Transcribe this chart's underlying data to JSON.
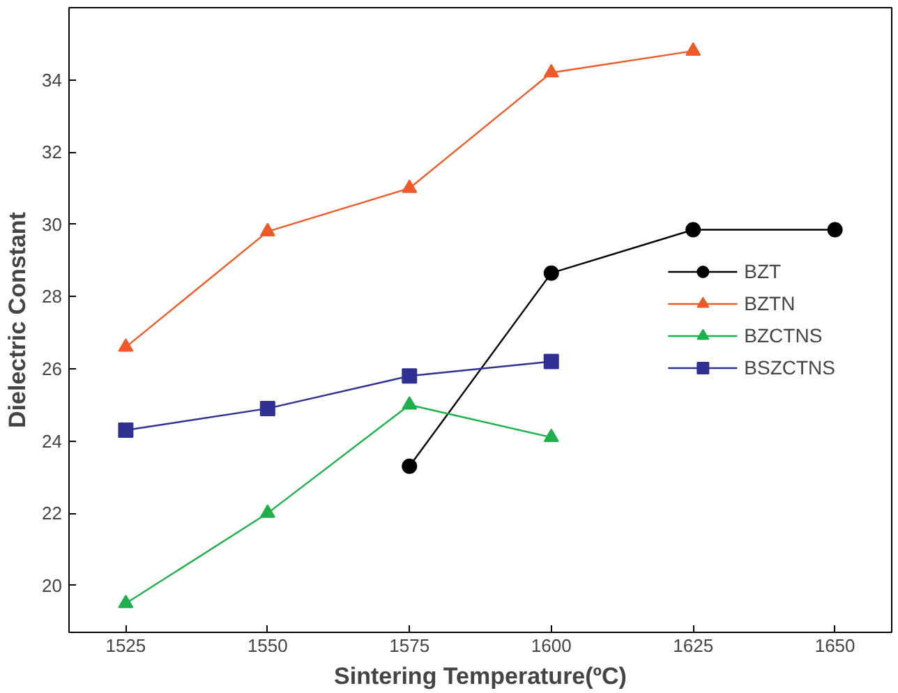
{
  "chart_data": {
    "type": "line",
    "xlabel": "Sintering Temperature(ºC)",
    "ylabel": "Dielectric Constant",
    "xlim": [
      1515,
      1660
    ],
    "ylim": [
      18.7,
      36
    ],
    "xticks": [
      1525,
      1550,
      1575,
      1600,
      1625,
      1650
    ],
    "yticks": [
      20,
      22,
      24,
      26,
      28,
      30,
      32,
      34
    ],
    "grid": false,
    "legend": "right",
    "series": [
      {
        "name": "BZT",
        "color": "#000000",
        "marker": "circle",
        "x": [
          1575,
          1600,
          1625,
          1650
        ],
        "values": [
          23.3,
          28.65,
          29.85,
          29.85
        ]
      },
      {
        "name": "BZTN",
        "color": "#f05a28",
        "marker": "triangle",
        "x": [
          1525,
          1550,
          1575,
          1600,
          1625
        ],
        "values": [
          26.6,
          29.8,
          31.0,
          34.2,
          34.8
        ]
      },
      {
        "name": "BZCTNS",
        "color": "#1db04b",
        "marker": "triangle",
        "x": [
          1525,
          1550,
          1575,
          1600
        ],
        "values": [
          19.5,
          22.0,
          25.0,
          24.1
        ]
      },
      {
        "name": "BSZCTNS",
        "color": "#2e3192",
        "marker": "square",
        "x": [
          1525,
          1550,
          1575,
          1600
        ],
        "values": [
          24.3,
          24.9,
          25.8,
          26.2
        ]
      }
    ]
  }
}
